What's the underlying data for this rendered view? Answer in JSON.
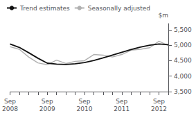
{
  "chart_data": {
    "type": "line",
    "ylabel": "$m",
    "categories": [
      "Sep\n2008",
      null,
      null,
      null,
      "Sep\n2009",
      null,
      null,
      null,
      "Sep\n2010",
      null,
      null,
      null,
      "Sep\n2011",
      null,
      null,
      null,
      "Sep\n2012",
      null
    ],
    "series": [
      {
        "name": "Seasonally adjusted",
        "color": "#b0b0b0",
        "values": [
          4950,
          4870,
          4620,
          4430,
          4370,
          4520,
          4410,
          4480,
          4500,
          4700,
          4680,
          4620,
          4700,
          4840,
          4870,
          4920,
          5130,
          4990
        ]
      },
      {
        "name": "Trend estimates",
        "color": "#111111",
        "values": [
          5040,
          4930,
          4760,
          4580,
          4420,
          4390,
          4380,
          4400,
          4440,
          4510,
          4590,
          4680,
          4770,
          4860,
          4940,
          5000,
          5040,
          5020
        ]
      }
    ],
    "ylim": [
      3500,
      5700
    ],
    "yticks": [
      3500,
      4000,
      4500,
      5000,
      5500
    ],
    "grid": false,
    "legend": "upper left"
  }
}
